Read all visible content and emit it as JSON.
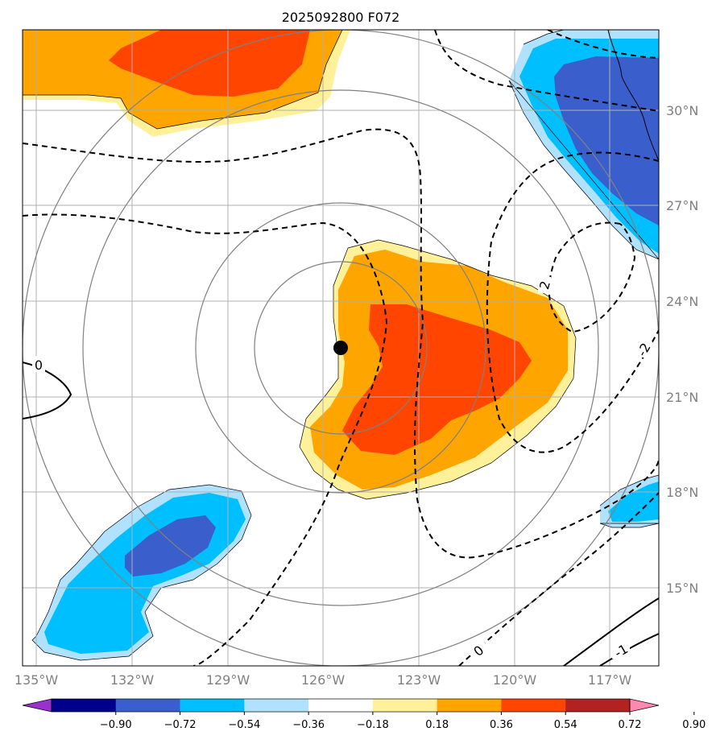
{
  "title": "2025092800 F072",
  "lon_ticks": [
    "135°W",
    "132°W",
    "129°W",
    "126°W",
    "123°W",
    "120°W",
    "117°W"
  ],
  "lat_ticks": [
    "30°N",
    "27°N",
    "24°N",
    "21°N",
    "18°N",
    "15°N"
  ],
  "colorbar": {
    "labels": [
      "−0.90",
      "−0.72",
      "−0.54",
      "−0.36",
      "−0.18",
      "0.18",
      "0.36",
      "0.54",
      "0.72",
      "0.90"
    ],
    "colors": [
      "#9932cc",
      "#00008b",
      "#3a5fcd",
      "#00bfff",
      "#b0e2ff",
      "#ffffff",
      "#fff09a",
      "#ffa500",
      "#ff4500",
      "#b22222",
      "#ff88b0"
    ]
  },
  "contour_labels": [
    "0",
    "2",
    "-2",
    "0",
    "-1"
  ],
  "storm_center": {
    "lon": -125.5,
    "lat": 22.5
  },
  "range_rings_deg": [
    2.7,
    4.5,
    7.5,
    10.0
  ]
}
